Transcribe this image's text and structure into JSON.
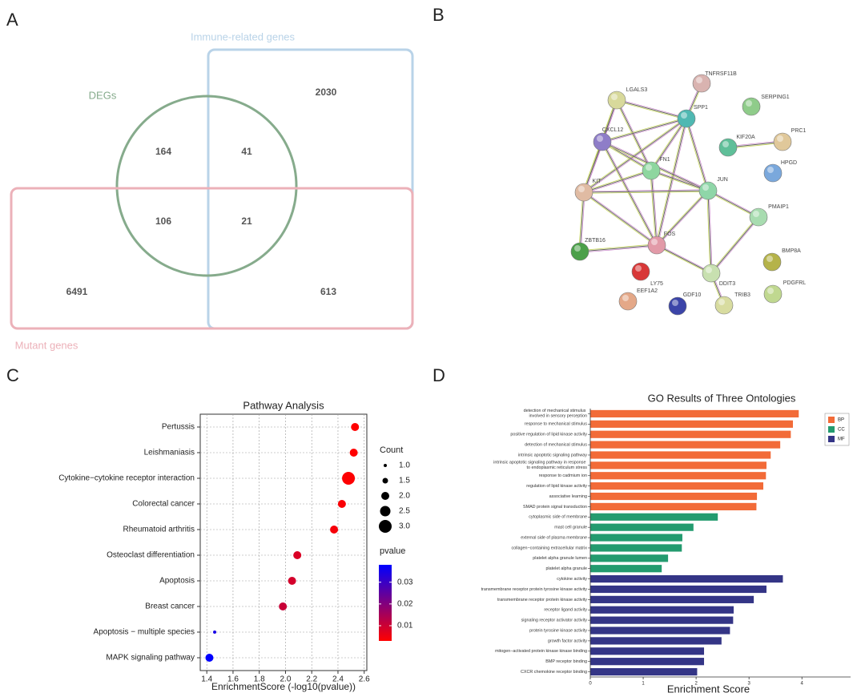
{
  "panels": [
    "A",
    "B",
    "C",
    "D"
  ],
  "venn": {
    "sets": [
      {
        "name": "Immune-related genes",
        "color": "#b9d3e8"
      },
      {
        "name": "DEGs",
        "color": "#86ab8c"
      },
      {
        "name": "Mutant genes",
        "color": "#ecb1b9"
      }
    ],
    "counts": [
      2030,
      164,
      41,
      106,
      21,
      6491,
      613
    ]
  },
  "network": {
    "nodes": [
      {
        "label": "TNFRSF11B",
        "color": "#d9b3b0"
      },
      {
        "label": "LGALS3",
        "color": "#d8d99b"
      },
      {
        "label": "SPP1",
        "color": "#4fb8b2"
      },
      {
        "label": "SERPING1",
        "color": "#8fcc8a"
      },
      {
        "label": "CXCL12",
        "color": "#8e7dc8"
      },
      {
        "label": "KIF20A",
        "color": "#5fbf99"
      },
      {
        "label": "PRC1",
        "color": "#e0c89a"
      },
      {
        "label": "FN1",
        "color": "#8ed69f"
      },
      {
        "label": "HPGD",
        "color": "#7aa8dc"
      },
      {
        "label": "KIT",
        "color": "#e0bba3"
      },
      {
        "label": "JUN",
        "color": "#8fd6a8"
      },
      {
        "label": "PMAIP1",
        "color": "#a8dcb0"
      },
      {
        "label": "BMP8A",
        "color": "#b5b34a"
      },
      {
        "label": "ZBTB16",
        "color": "#4ca04a"
      },
      {
        "label": "FOS",
        "color": "#e29aa8"
      },
      {
        "label": "LY75",
        "color": "#d83838"
      },
      {
        "label": "DDIT3",
        "color": "#c8e0b0"
      },
      {
        "label": "PDGFRL",
        "color": "#c0d890"
      },
      {
        "label": "EEF1A2",
        "color": "#e4a888"
      },
      {
        "label": "GDF10",
        "color": "#3b44a8"
      },
      {
        "label": "TRIB3",
        "color": "#d8dca0"
      }
    ]
  },
  "chart_data": [
    {
      "type": "dot",
      "title": "Pathway Analysis",
      "xlabel": "EnrichmentScore (-log10(pvalue))",
      "categories": [
        "Pertussis",
        "Leishmaniasis",
        "Cytokine−cytokine receptor interaction",
        "Colorectal cancer",
        "Rheumatoid arthritis",
        "Osteoclast differentiation",
        "Apoptosis",
        "Breast cancer",
        "Apoptosis − multiple species",
        "MAPK signaling pathway"
      ],
      "values": [
        2.53,
        2.52,
        2.48,
        2.43,
        2.37,
        2.09,
        2.05,
        1.98,
        1.46,
        1.42
      ],
      "sizes": [
        2,
        2,
        3,
        2,
        2,
        2,
        2,
        2,
        1,
        2
      ],
      "pvalues": [
        0.003,
        0.003,
        0.0033,
        0.0037,
        0.0043,
        0.0081,
        0.0089,
        0.0105,
        0.0347,
        0.038
      ],
      "xlim": [
        1.35,
        2.62
      ],
      "xticks": [
        1.4,
        1.6,
        1.8,
        {
          "value": 2,
          "label": "2.0"
        },
        2.2,
        2.4,
        2.6
      ],
      "grid": true,
      "size_legend": {
        "title": "Count",
        "ticks": [
          {
            "value": 1,
            "label": "1.0"
          },
          1.5,
          {
            "value": 2,
            "label": "2.0"
          },
          2.5,
          {
            "value": 3,
            "label": "3.0"
          }
        ]
      },
      "color_legend": {
        "title": "pvalue",
        "lim": [
          0.003,
          0.038
        ],
        "ticks": [
          0.01,
          0.02,
          0.03
        ],
        "colors": [
          "#ff0000",
          "#0000ff"
        ]
      }
    },
    {
      "type": "hbar",
      "title": "GO Results of Three Ontologies",
      "xlabel": "Enrichment Score",
      "xlim": [
        0,
        4.92
      ],
      "xticks": [
        0,
        1,
        2,
        3,
        4
      ],
      "series": [
        {
          "name": "BP",
          "color": "#f26b38",
          "categories": [
            "detection of mechanical stimulus involved in sensory perception",
            "response to mechanical stimulus",
            "positive regulation of lipid kinase activity",
            "detection of mechanical stimulus",
            "intrinsic apoptotic signaling pathway",
            "intrinsic apoptotic signaling pathway in response to endoplasmic reticulum stress",
            "response to cadmium ion",
            "regulation of lipid kinase activity",
            "associative learning",
            "SMAD protein signal transduction"
          ],
          "values": [
            3.94,
            3.83,
            3.79,
            3.59,
            3.41,
            3.33,
            3.32,
            3.27,
            3.15,
            3.14
          ]
        },
        {
          "name": "CC",
          "color": "#239b6f",
          "categories": [
            "cytoplasmic side of membrane",
            "mast cell granule",
            "external side of plasma membrane",
            "collagen−containing extracellular matrix",
            "platelet alpha granule lumen",
            "platelet alpha granule"
          ],
          "values": [
            2.41,
            1.95,
            1.74,
            1.73,
            1.47,
            1.35
          ]
        },
        {
          "name": "MF",
          "color": "#343586",
          "categories": [
            "cytokine activity",
            "transmembrane receptor protein tyrosine kinase activity",
            "transmembrane receptor protein kinase activity",
            "receptor ligand activity",
            "signaling receptor activator activity",
            "protein tyrosine kinase activity",
            "growth factor activity",
            "mitogen−activated protein kinase kinase binding",
            "BMP receptor binding",
            "CXCR chemokine receptor binding"
          ],
          "values": [
            3.64,
            3.33,
            3.09,
            2.71,
            2.7,
            2.64,
            2.48,
            2.15,
            2.15,
            2.02
          ]
        }
      ]
    }
  ]
}
